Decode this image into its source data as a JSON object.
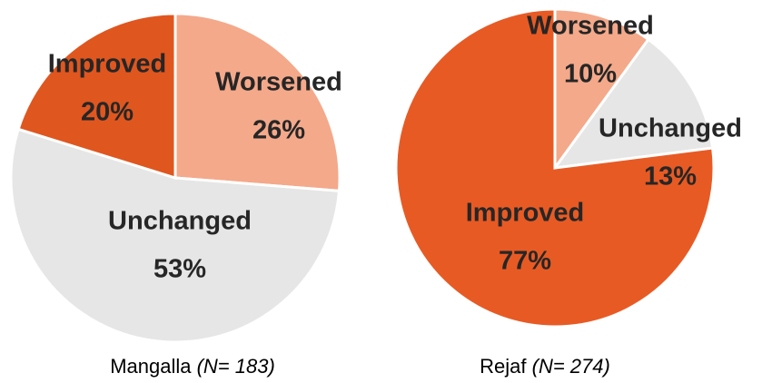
{
  "chart_data": [
    {
      "type": "pie",
      "title": "Mangalla",
      "subtitle": "(N= 183)",
      "categories": [
        "Worsened",
        "Unchanged",
        "Improved"
      ],
      "values": [
        26,
        53,
        20
      ],
      "value_labels": [
        "26%",
        "53%",
        "20%"
      ],
      "colors": [
        "#f4a98a",
        "#e6e6e6",
        "#e0561f"
      ]
    },
    {
      "type": "pie",
      "title": "Rejaf",
      "subtitle": "(N= 274)",
      "categories": [
        "Worsened",
        "Unchanged",
        "Improved"
      ],
      "values": [
        10,
        13,
        77
      ],
      "value_labels": [
        "10%",
        "13%",
        "77%"
      ],
      "colors": [
        "#f4a98a",
        "#e6e6e6",
        "#e85a24"
      ]
    }
  ]
}
